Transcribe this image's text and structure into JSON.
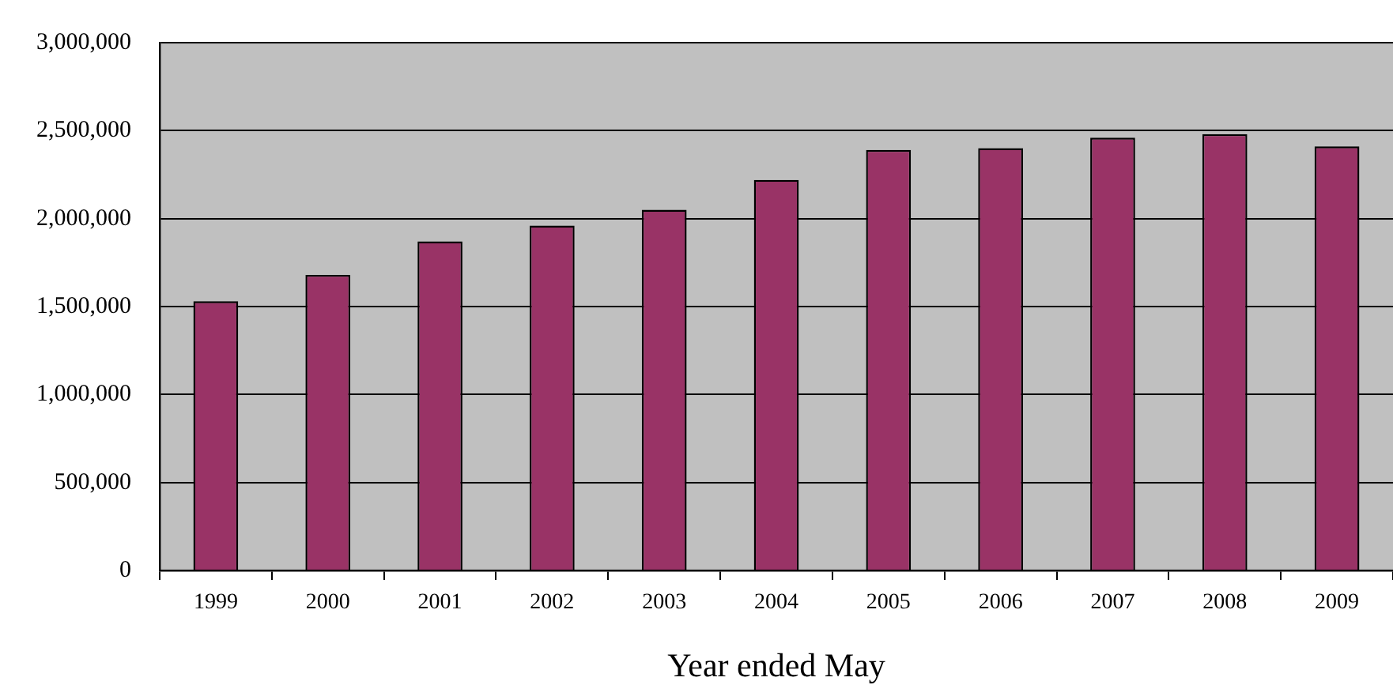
{
  "chart_data": {
    "type": "bar",
    "xlabel": "Year ended May",
    "categories": [
      "1999",
      "2000",
      "2001",
      "2002",
      "2003",
      "2004",
      "2005",
      "2006",
      "2007",
      "2008",
      "2009"
    ],
    "values": [
      1530000,
      1680000,
      1870000,
      1960000,
      2050000,
      2220000,
      2390000,
      2400000,
      2460000,
      2480000,
      2410000
    ],
    "color": "#993366",
    "ylim": [
      0,
      3000000
    ],
    "yticks": [
      0,
      {
        "value": 500000,
        "label": "500,000"
      },
      {
        "value": 1000000,
        "label": "1,000,000"
      },
      {
        "value": 1500000,
        "label": "1,500,000"
      },
      {
        "value": 2000000,
        "label": "2,000,000"
      },
      {
        "value": 2500000,
        "label": "2,500,000"
      },
      {
        "value": 3000000,
        "label": "3,000,000"
      }
    ],
    "grid": "y",
    "legend": false
  }
}
